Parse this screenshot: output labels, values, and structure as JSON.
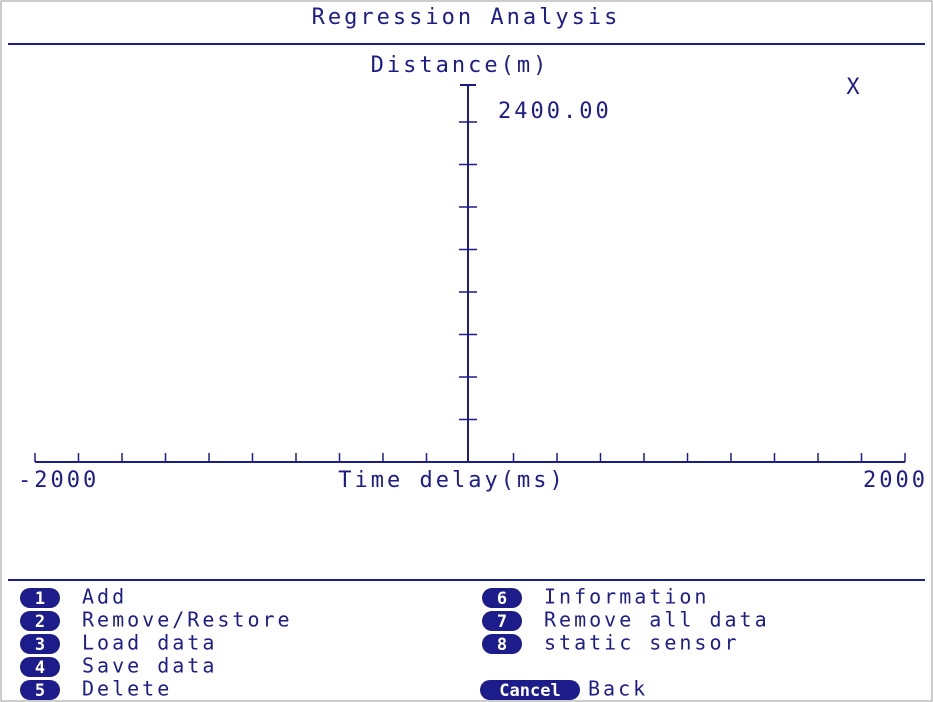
{
  "header": {
    "title": "Regression Analysis"
  },
  "chart_data": {
    "type": "axes",
    "y_label": "Distance(m)",
    "x_label": "Time delay(ms)",
    "cursor": "X",
    "xlim": [
      -2000,
      2000
    ],
    "ylim": [
      0,
      2400
    ],
    "xticks": [
      -2000,
      2000
    ],
    "yticks": [
      {
        "value": 2400,
        "label": "2400.00"
      }
    ],
    "x_minor_ticks": [
      -1800,
      -1600,
      -1400,
      -1200,
      -1000,
      -800,
      -600,
      -400,
      -200,
      200,
      400,
      600,
      800,
      1000,
      1200,
      1400,
      1600,
      1800
    ],
    "y_minor_ticks": [
      300,
      600,
      900,
      1200,
      1500,
      1800,
      2100
    ]
  },
  "menu": {
    "left": [
      {
        "key": "1",
        "label": "Add"
      },
      {
        "key": "2",
        "label": "Remove/Restore"
      },
      {
        "key": "3",
        "label": "Load data"
      },
      {
        "key": "4",
        "label": "Save data"
      },
      {
        "key": "5",
        "label": "Delete"
      }
    ],
    "right": [
      {
        "key": "6",
        "label": "Information"
      },
      {
        "key": "7",
        "label": "Remove all data"
      },
      {
        "key": "8",
        "label": "static sensor"
      }
    ],
    "cancel": {
      "key": "Cancel",
      "label": "Back"
    }
  }
}
